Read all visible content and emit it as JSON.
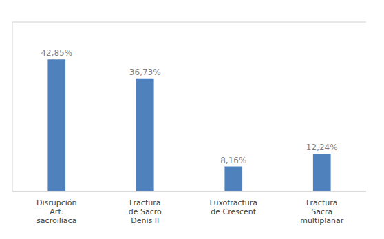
{
  "chart_data": {
    "type": "bar",
    "categories": [
      "Disrupción\nArt.\nsacroilíaca",
      "Fractura\nde Sacro\nDenis II",
      "Luxofractura\nde Crescent",
      "Fractura\nSacra\nmultiplanar"
    ],
    "values": [
      42.85,
      36.73,
      8.16,
      12.24
    ],
    "value_labels": [
      "42,85%",
      "36,73%",
      "8,16%",
      "12,24%"
    ],
    "data_labels": true,
    "color": "#4F81BD",
    "ylim": [
      0,
      55
    ],
    "yticks": [
      0,
      10,
      20,
      30,
      40,
      50
    ],
    "grid": true,
    "tick_labels": "x"
  }
}
